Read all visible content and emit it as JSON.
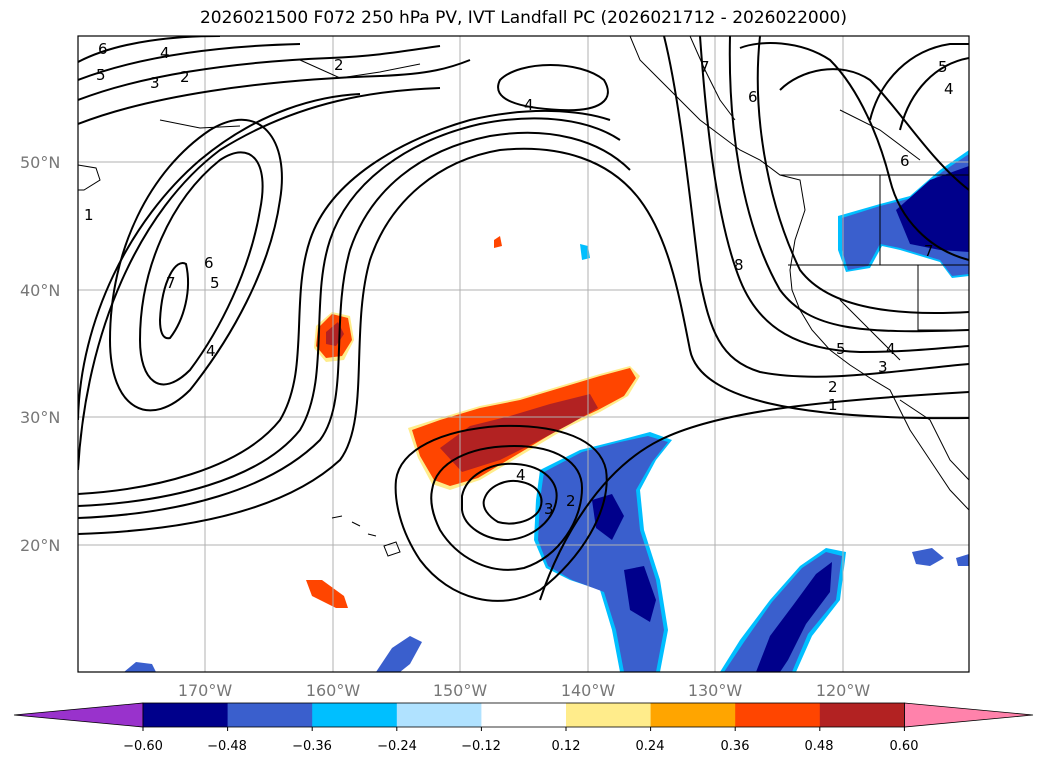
{
  "title": "2026021500 F072 250 hPa PV, IVT Landfall PC (2026021712 - 2026022000)",
  "lat_labels": [
    "50°N",
    "40°N",
    "30°N",
    "20°N"
  ],
  "lon_labels": [
    "170°W",
    "160°W",
    "150°W",
    "140°W",
    "130°W",
    "120°W"
  ],
  "colorbar": {
    "colors": [
      "#9932CC",
      "#00008B",
      "#3A5FCD",
      "#00BFFF",
      "#B0E2FF",
      "#FFFFFF",
      "#FFEC8B",
      "#FFA500",
      "#FF4500",
      "#B22222",
      "#FF82AB"
    ],
    "ticks": [
      "−0.60",
      "−0.48",
      "−0.36",
      "−0.24",
      "−0.12",
      "0.12",
      "0.24",
      "0.36",
      "0.48",
      "0.60"
    ]
  },
  "contour_labels": [
    "6",
    "5",
    "4",
    "3",
    "2",
    "1",
    "7",
    "6",
    "5",
    "4",
    "2",
    "4",
    "7",
    "6",
    "8",
    "5",
    "4",
    "6",
    "5",
    "4",
    "3",
    "2",
    "1",
    "4",
    "3",
    "2",
    "7"
  ]
}
